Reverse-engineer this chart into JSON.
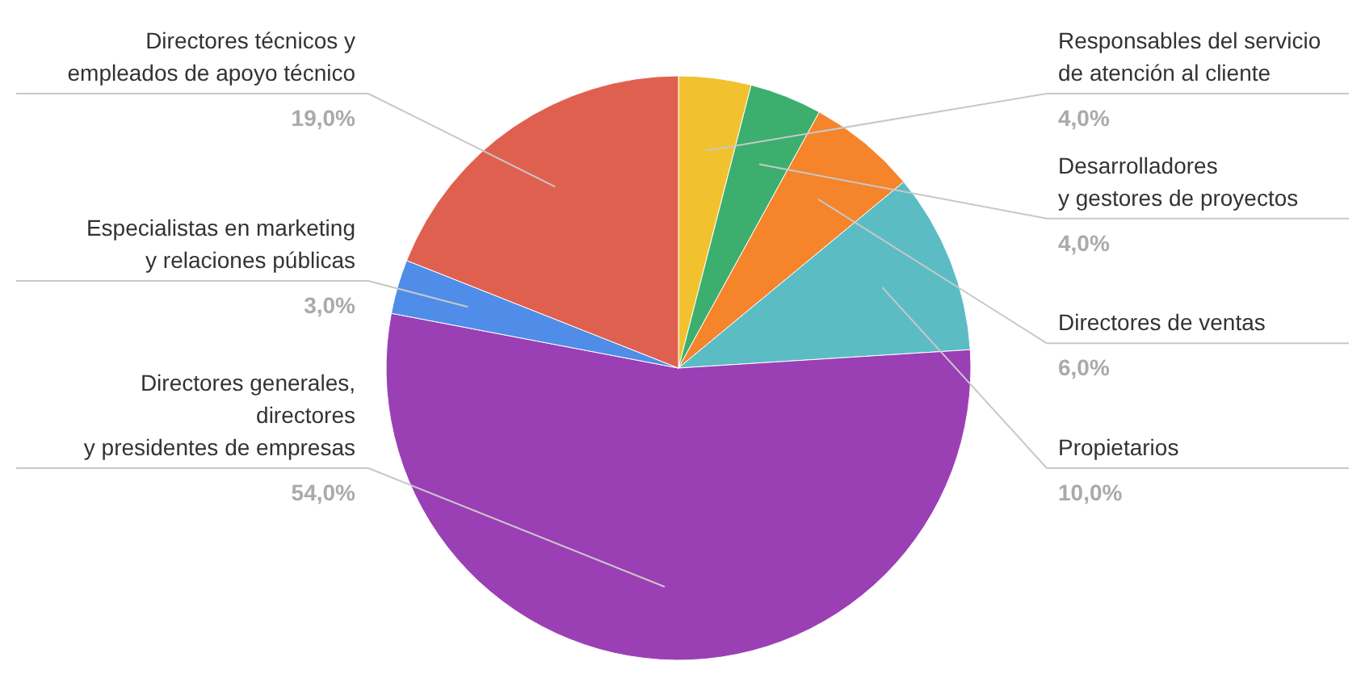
{
  "chart_data": {
    "type": "pie",
    "categories": [
      "Responsables del servicio\nde atención al cliente",
      "Desarrolladores\ny gestores de proyectos",
      "Directores de ventas",
      "Propietarios",
      "Directores generales,\ndirectores\ny presidentes de empresas",
      "Especialistas en marketing\ny relaciones públicas",
      "Directores técnicos y\nempleados de apoyo técnico"
    ],
    "values": [
      4,
      4,
      6,
      10,
      54,
      3,
      19
    ],
    "colors": [
      "#f2c12e",
      "#3cae6e",
      "#f5842b",
      "#5bbcc4",
      "#9b3fb5",
      "#4f8de8",
      "#e0604f"
    ],
    "value_labels": [
      "4,0%",
      "4,0%",
      "6,0%",
      "10,0%",
      "54,0%",
      "3,0%",
      "19,0%"
    ]
  }
}
